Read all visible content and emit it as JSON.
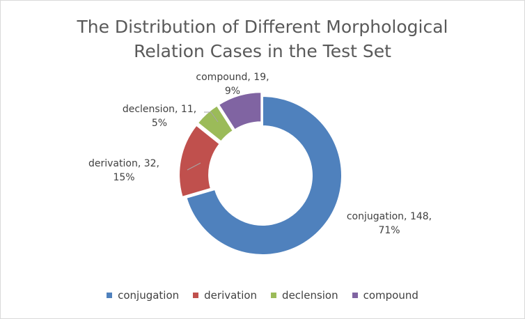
{
  "chart_data": {
    "type": "pie",
    "variant": "donut",
    "title": "The Distribution of Different Morphological Relation Cases in the Test Set",
    "title_lines": [
      "The Distribution of Different Morphological",
      "Relation Cases in the Test Set"
    ],
    "categories": [
      "conjugation",
      "derivation",
      "declension",
      "compound"
    ],
    "values": [
      148,
      32,
      11,
      19
    ],
    "percent_labels": [
      "71%",
      "15%",
      "5%",
      "9%"
    ],
    "data_labels": [
      [
        "conjugation, 148,",
        "71%"
      ],
      [
        "derivation, 32,",
        "15%"
      ],
      [
        "declension, 11,",
        "5%"
      ],
      [
        "compound, 19,",
        "9%"
      ]
    ],
    "colors": [
      "#4f81bd",
      "#c0504d",
      "#9bbb59",
      "#8064a2"
    ],
    "legend_position": "bottom"
  }
}
